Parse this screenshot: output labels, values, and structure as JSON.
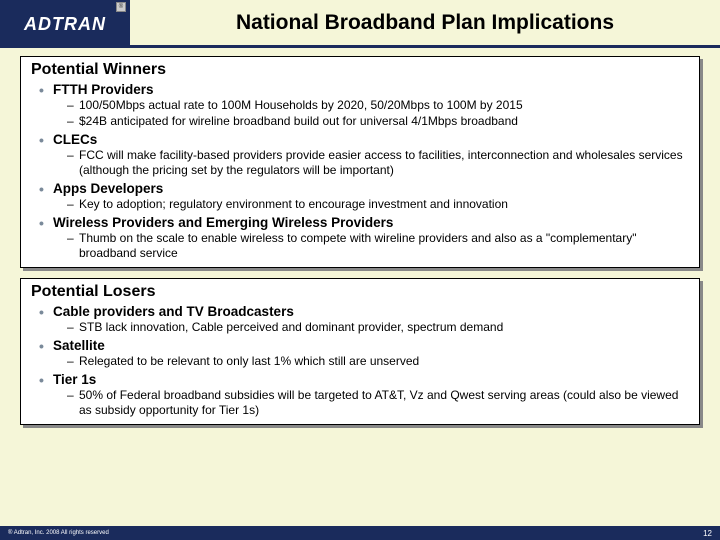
{
  "header": {
    "logo_text": "ADTRAN",
    "title": "National Broadband Plan Implications"
  },
  "colors": {
    "header_navy": "#1a2b5c",
    "background": "#f5f6d8",
    "panel_bg": "#ffffff",
    "shadow": "#888888",
    "bullet_color": "#7a8a9a"
  },
  "panels": [
    {
      "heading": "Potential Winners",
      "items": [
        {
          "label": "FTTH Providers",
          "subs": [
            "100/50Mbps actual rate to 100M Households by 2020,  50/20Mbps to 100M by 2015",
            "$24B anticipated for wireline broadband build out for universal 4/1Mbps broadband"
          ]
        },
        {
          "label": "CLECs",
          "subs": [
            "FCC will make facility-based providers provide easier access to facilities, interconnection and wholesales services (although the pricing set by the regulators will be important)"
          ]
        },
        {
          "label": "Apps Developers",
          "subs": [
            "Key to adoption;  regulatory environment to encourage investment and innovation"
          ]
        },
        {
          "label": "Wireless Providers and Emerging Wireless Providers",
          "subs": [
            "Thumb on the scale to enable wireless to compete with wireline providers and also as a \"complementary\" broadband service"
          ]
        }
      ]
    },
    {
      "heading": "Potential Losers",
      "items": [
        {
          "label": "Cable providers and TV Broadcasters",
          "subs": [
            "STB lack innovation, Cable perceived and dominant provider, spectrum demand"
          ]
        },
        {
          "label": "Satellite",
          "subs": [
            "Relegated to be relevant to only last 1% which still are unserved"
          ]
        },
        {
          "label": "Tier 1s",
          "subs": [
            "50% of Federal broadband subsidies will be targeted to AT&T, Vz and Qwest serving areas (could also be viewed as subsidy opportunity for Tier 1s)"
          ]
        }
      ]
    }
  ],
  "footer": {
    "copyright": "® Adtran, Inc. 2008 All rights reserved",
    "page": "12"
  }
}
